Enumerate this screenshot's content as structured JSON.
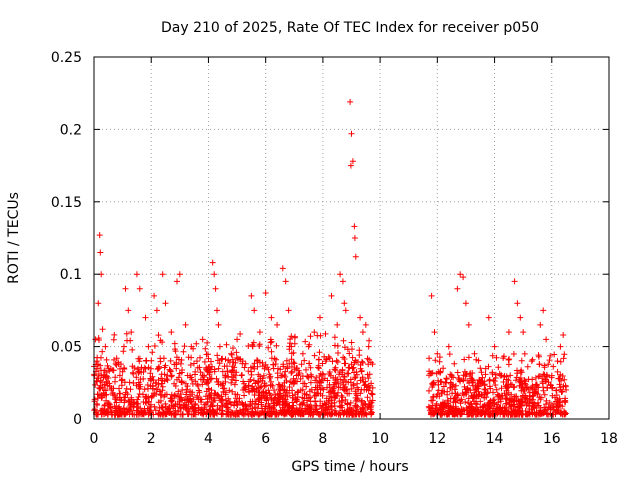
{
  "chart_data": {
    "type": "scatter",
    "title": "Day 210 of 2025, Rate Of TEC Index for receiver p050",
    "xlabel": "GPS time / hours",
    "ylabel": "ROTI / TECUs",
    "xlim": [
      0,
      18
    ],
    "ylim": [
      0,
      0.25
    ],
    "x_ticks": [
      "0",
      "2",
      "4",
      "6",
      "8",
      "10",
      "12",
      "14",
      "16",
      "18"
    ],
    "x_tick_values": [
      0,
      2,
      4,
      6,
      8,
      10,
      12,
      14,
      16,
      18
    ],
    "y_ticks": [
      "0",
      "0.05",
      "0.1",
      "0.15",
      "0.2",
      "0.25"
    ],
    "y_tick_values": [
      0,
      0.05,
      0.1,
      0.15,
      0.2,
      0.25
    ],
    "grid": true,
    "marker": "plus",
    "color": "#ff0000",
    "series": [
      {
        "name": "ROTI",
        "points": [
          [
            0.05,
            0.055
          ],
          [
            0.1,
            0.04
          ],
          [
            0.15,
            0.08
          ],
          [
            0.2,
            0.127
          ],
          [
            0.22,
            0.115
          ],
          [
            0.25,
            0.1
          ],
          [
            0.3,
            0.062
          ],
          [
            0.25,
            0.03
          ],
          [
            0.4,
            0.05
          ],
          [
            0.5,
            0.035
          ],
          [
            0.6,
            0.02
          ],
          [
            0.8,
            0.015
          ],
          [
            1.1,
            0.09
          ],
          [
            1.2,
            0.075
          ],
          [
            1.3,
            0.06
          ],
          [
            1.5,
            0.1
          ],
          [
            1.6,
            0.09
          ],
          [
            1.8,
            0.07
          ],
          [
            1.9,
            0.05
          ],
          [
            2.1,
            0.085
          ],
          [
            2.2,
            0.075
          ],
          [
            2.4,
            0.1
          ],
          [
            2.5,
            0.08
          ],
          [
            2.7,
            0.06
          ],
          [
            2.9,
            0.095
          ],
          [
            3.0,
            0.1
          ],
          [
            3.2,
            0.065
          ],
          [
            3.4,
            0.05
          ],
          [
            3.6,
            0.04
          ],
          [
            3.8,
            0.055
          ],
          [
            4.0,
            0.035
          ],
          [
            4.15,
            0.108
          ],
          [
            4.2,
            0.1
          ],
          [
            4.25,
            0.09
          ],
          [
            4.3,
            0.075
          ],
          [
            4.35,
            0.065
          ],
          [
            4.4,
            0.05
          ],
          [
            4.6,
            0.03
          ],
          [
            4.8,
            0.045
          ],
          [
            5.0,
            0.055
          ],
          [
            5.2,
            0.04
          ],
          [
            5.5,
            0.085
          ],
          [
            5.6,
            0.075
          ],
          [
            5.8,
            0.06
          ],
          [
            6.0,
            0.087
          ],
          [
            6.2,
            0.07
          ],
          [
            6.4,
            0.065
          ],
          [
            6.6,
            0.104
          ],
          [
            6.7,
            0.095
          ],
          [
            6.8,
            0.075
          ],
          [
            6.9,
            0.05
          ],
          [
            7.1,
            0.035
          ],
          [
            7.3,
            0.045
          ],
          [
            7.5,
            0.05
          ],
          [
            7.7,
            0.06
          ],
          [
            7.9,
            0.07
          ],
          [
            8.1,
            0.04
          ],
          [
            8.3,
            0.085
          ],
          [
            8.5,
            0.065
          ],
          [
            8.6,
            0.1
          ],
          [
            8.7,
            0.095
          ],
          [
            8.75,
            0.08
          ],
          [
            8.8,
            0.075
          ],
          [
            8.95,
            0.219
          ],
          [
            9.0,
            0.197
          ],
          [
            8.98,
            0.175
          ],
          [
            9.05,
            0.178
          ],
          [
            9.1,
            0.133
          ],
          [
            9.12,
            0.125
          ],
          [
            9.15,
            0.112
          ],
          [
            9.3,
            0.07
          ],
          [
            9.4,
            0.06
          ],
          [
            9.5,
            0.065
          ],
          [
            9.6,
            0.05
          ],
          [
            11.8,
            0.085
          ],
          [
            11.9,
            0.06
          ],
          [
            12.0,
            0.045
          ],
          [
            12.2,
            0.035
          ],
          [
            12.4,
            0.05
          ],
          [
            12.7,
            0.09
          ],
          [
            12.8,
            0.1
          ],
          [
            12.9,
            0.098
          ],
          [
            13.0,
            0.08
          ],
          [
            13.1,
            0.065
          ],
          [
            13.3,
            0.045
          ],
          [
            13.5,
            0.035
          ],
          [
            13.8,
            0.07
          ],
          [
            14.0,
            0.05
          ],
          [
            14.2,
            0.03
          ],
          [
            14.5,
            0.06
          ],
          [
            14.7,
            0.095
          ],
          [
            14.8,
            0.08
          ],
          [
            14.9,
            0.07
          ],
          [
            15.0,
            0.06
          ],
          [
            15.3,
            0.04
          ],
          [
            15.6,
            0.065
          ],
          [
            15.7,
            0.075
          ],
          [
            15.8,
            0.055
          ],
          [
            16.0,
            0.03
          ],
          [
            16.2,
            0.04
          ],
          [
            16.3,
            0.05
          ],
          [
            16.4,
            0.058
          ]
        ]
      }
    ],
    "dense_bands": [
      {
        "x_range": [
          0.0,
          9.75
        ],
        "y_typical_max": 0.04
      },
      {
        "x_range": [
          11.7,
          16.5
        ],
        "y_typical_max": 0.03
      }
    ]
  }
}
